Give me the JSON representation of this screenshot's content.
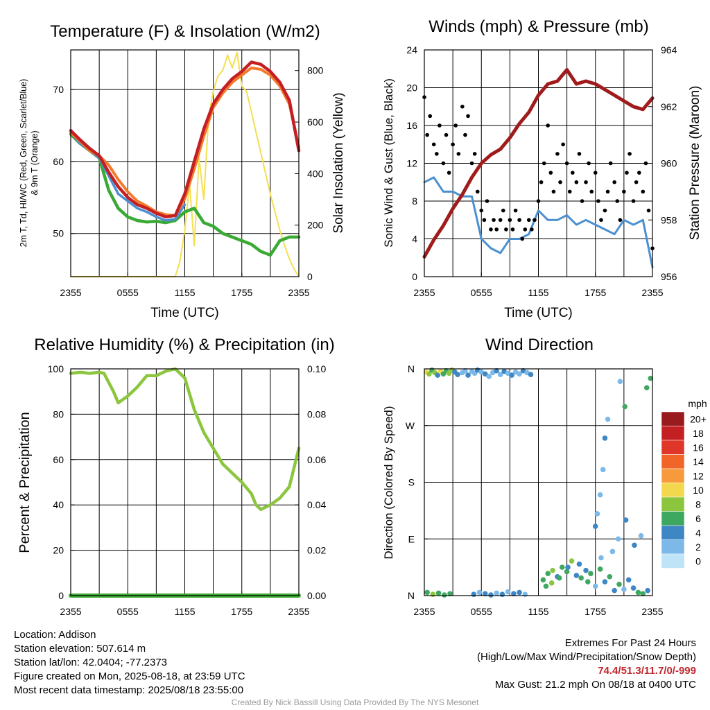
{
  "chart_data": [
    {
      "type": "line",
      "title": "Temperature (F) & Insolation (W/m2)",
      "xlabel": "Time (UTC)",
      "ylabel": "2m T, Td, HI/WC (Red, Green, Scarlet/Blue) & 9m T (Orange)",
      "y2label": "Solar Insolation (Yellow)",
      "x_ticks": [
        "2355",
        "0555",
        "1155",
        "1755",
        "2355"
      ],
      "ylim": [
        44,
        75.5
      ],
      "y_ticks": [
        50,
        60,
        70
      ],
      "y2lim": [
        0,
        880
      ],
      "y2_ticks": [
        0,
        200,
        400,
        600,
        800
      ],
      "x_hours": [
        0,
        24
      ],
      "grid": true,
      "series": [
        {
          "name": "2m T",
          "color": "#c42024",
          "axis": "left",
          "width": 4.5,
          "x": [
            0,
            1,
            2,
            3,
            4,
            5,
            6,
            7,
            8,
            9,
            10,
            11,
            12,
            13,
            14,
            15,
            16,
            17,
            18,
            19,
            20,
            21,
            22,
            23,
            24
          ],
          "y": [
            64.3,
            63,
            61.8,
            60.8,
            58.5,
            56.5,
            55,
            54,
            53.5,
            52.8,
            52.3,
            52.5,
            55.5,
            60,
            64.5,
            68,
            70,
            71.5,
            72.5,
            73.8,
            73.5,
            72.5,
            71,
            68.5,
            61.5
          ]
        },
        {
          "name": "Td",
          "color": "#3aaa35",
          "axis": "left",
          "width": 4.5,
          "x": [
            0,
            1,
            2,
            3,
            4,
            5,
            6,
            7,
            8,
            9,
            10,
            11,
            12,
            13,
            14,
            15,
            16,
            17,
            18,
            19,
            20,
            21,
            22,
            23,
            24
          ],
          "y": [
            63.8,
            62.5,
            61.5,
            60.5,
            56,
            53.5,
            52.3,
            51.8,
            51.6,
            51.7,
            51.5,
            51.8,
            53,
            53.5,
            51.5,
            51,
            50,
            49.5,
            49,
            48.5,
            47.5,
            47,
            49,
            49.5,
            49.5
          ]
        },
        {
          "name": "HI/WC",
          "color": "#4c8fd2",
          "axis": "left",
          "width": 3.5,
          "x": [
            0,
            1,
            2,
            3,
            4,
            5,
            6,
            7,
            8,
            9,
            10,
            11,
            12
          ],
          "y": [
            64,
            62.5,
            61.5,
            60.5,
            58,
            55.5,
            54.5,
            53.5,
            53,
            52.3,
            51.8,
            52,
            54
          ]
        },
        {
          "name": "9m T",
          "color": "#f47a2a",
          "axis": "left",
          "width": 4,
          "x": [
            0,
            1,
            2,
            3,
            4,
            5,
            6,
            7,
            8,
            9,
            10,
            11,
            12,
            13,
            14,
            15,
            16,
            17,
            18,
            19,
            20,
            21,
            22,
            23,
            24
          ],
          "y": [
            64,
            62.8,
            61.5,
            60.8,
            59.5,
            57.5,
            55.8,
            54.5,
            53.8,
            53,
            52.6,
            52.5,
            54.8,
            59,
            63.5,
            67.5,
            69.5,
            71,
            72,
            73,
            72.8,
            72,
            70.5,
            68,
            62
          ]
        },
        {
          "name": "Solar Insolation",
          "color": "#f4df4f",
          "axis": "right",
          "width": 2,
          "x": [
            0,
            2,
            4,
            6,
            8,
            10,
            11,
            11.5,
            12,
            12.5,
            13,
            13.5,
            14,
            14.5,
            15,
            15.5,
            16,
            16.5,
            17,
            17.5,
            18,
            18.5,
            19,
            19.5,
            20,
            20.5,
            21,
            21.5,
            22,
            22.5,
            23,
            23.5,
            24
          ],
          "y": [
            0,
            0,
            0,
            0,
            0,
            0,
            0,
            60,
            180,
            360,
            120,
            460,
            300,
            620,
            720,
            780,
            800,
            860,
            810,
            870,
            740,
            720,
            640,
            560,
            480,
            400,
            320,
            250,
            180,
            120,
            70,
            30,
            0
          ]
        }
      ]
    },
    {
      "type": "line",
      "title": "Winds (mph) & Pressure (mb)",
      "xlabel": "Time (UTC)",
      "ylabel": "Sonic Wind & Gust (Blue, Black)",
      "y2label": "Station Pressure (Maroon)",
      "x_ticks": [
        "2355",
        "0555",
        "1155",
        "1755",
        "2355"
      ],
      "ylim": [
        0,
        24
      ],
      "y_ticks": [
        0,
        4,
        8,
        12,
        16,
        20,
        24
      ],
      "y2lim": [
        956,
        964
      ],
      "y2_ticks": [
        956,
        958,
        960,
        962,
        964
      ],
      "x_hours": [
        0,
        24
      ],
      "grid": true,
      "series": [
        {
          "name": "Sonic Wind",
          "color": "#4a90d0",
          "axis": "left",
          "type": "line",
          "width": 3,
          "x": [
            0,
            1,
            2,
            3,
            4,
            5,
            6,
            7,
            8,
            9,
            10,
            11,
            12,
            13,
            14,
            15,
            16,
            17,
            18,
            19,
            20,
            21,
            22,
            23,
            24
          ],
          "y": [
            10,
            10.5,
            9,
            9,
            8.5,
            8.5,
            4,
            3,
            2.5,
            4,
            4,
            4.5,
            7,
            6,
            6,
            6.5,
            5.5,
            6,
            5.5,
            5,
            4.5,
            6,
            5.5,
            6,
            1
          ]
        },
        {
          "name": "Gust",
          "color": "#000000",
          "axis": "left",
          "type": "scatter",
          "x": [
            0,
            0.3,
            0.6,
            1,
            1.3,
            1.6,
            2,
            2.3,
            2.6,
            3,
            3.3,
            3.6,
            4,
            4.3,
            4.6,
            5,
            5.3,
            5.6,
            6,
            6.3,
            6.6,
            7,
            7.3,
            7.6,
            8,
            8.3,
            8.6,
            9,
            9.3,
            9.6,
            10,
            10.3,
            10.6,
            11,
            11.3,
            11.6,
            12,
            12.3,
            12.6,
            13,
            13.3,
            13.6,
            14,
            14.3,
            14.6,
            15,
            15.3,
            15.6,
            16,
            16.3,
            16.6,
            17,
            17.3,
            17.6,
            18,
            18.3,
            18.6,
            19,
            19.3,
            19.6,
            20,
            20.3,
            20.6,
            21,
            21.3,
            21.6,
            22,
            22.3,
            22.6,
            23,
            23.3,
            23.6,
            24
          ],
          "y": [
            19,
            15,
            17,
            14,
            13,
            16,
            12,
            15,
            11,
            14,
            16,
            13,
            18,
            15,
            17,
            12,
            13,
            9,
            7,
            6,
            8,
            5,
            6,
            5,
            6,
            7,
            5,
            6,
            5,
            7,
            6,
            4,
            5,
            6,
            5,
            6,
            8,
            10,
            12,
            16,
            11,
            9,
            13,
            10,
            14,
            12,
            9,
            11,
            10,
            13,
            8,
            10,
            12,
            9,
            11,
            8,
            6,
            7,
            9,
            12,
            10,
            8,
            6,
            9,
            11,
            13,
            8,
            10,
            11,
            9,
            12,
            7,
            3
          ]
        },
        {
          "name": "Station Pressure",
          "color": "#a01c1c",
          "axis": "right",
          "type": "line",
          "width": 5,
          "x": [
            0,
            1,
            2,
            3,
            4,
            5,
            6,
            7,
            8,
            9,
            10,
            11,
            12,
            13,
            14,
            15,
            16,
            17,
            18,
            19,
            20,
            21,
            22,
            23,
            24
          ],
          "y": [
            956.7,
            957.3,
            957.8,
            958.4,
            958.9,
            959.5,
            960,
            960.3,
            960.5,
            960.9,
            961.4,
            961.8,
            962.4,
            962.8,
            962.9,
            963.3,
            962.8,
            962.9,
            962.8,
            962.6,
            962.4,
            962.2,
            962.0,
            961.9,
            962.3
          ]
        }
      ]
    },
    {
      "type": "line",
      "title": "Relative Humidity (%) & Precipitation (in)",
      "xlabel": "",
      "ylabel": "Percent & Precipitation",
      "x_ticks": [
        "2355",
        "0555",
        "1155",
        "1755",
        "2355"
      ],
      "ylim": [
        0,
        100
      ],
      "y_ticks": [
        0,
        20,
        40,
        60,
        80,
        100
      ],
      "y2lim": [
        0,
        0.1
      ],
      "y2_ticks": [
        "0.00",
        "0.02",
        "0.04",
        "0.06",
        "0.08",
        "0.10"
      ],
      "x_hours": [
        0,
        24
      ],
      "grid": true,
      "series": [
        {
          "name": "Relative Humidity",
          "color": "#8cc63f",
          "axis": "left",
          "width": 4.5,
          "x": [
            0,
            1,
            2,
            3,
            3.5,
            4,
            4.5,
            5,
            6,
            7,
            8,
            9,
            10,
            11,
            12,
            13,
            14,
            15,
            16,
            17,
            18,
            19,
            19.5,
            20,
            21,
            22,
            23,
            24
          ],
          "y": [
            98,
            98.5,
            98,
            98.5,
            98,
            94,
            90,
            85,
            88,
            92,
            97,
            97,
            99,
            100,
            96,
            82,
            72,
            65,
            58,
            54,
            50,
            45,
            40,
            38,
            40,
            43,
            48,
            65
          ]
        },
        {
          "name": "Precipitation",
          "color": "#3aaa35",
          "axis": "right",
          "width": 6,
          "x": [
            0,
            24
          ],
          "y": [
            0,
            0
          ]
        }
      ]
    },
    {
      "type": "scatter",
      "title": "Wind Direction",
      "ylabel": "Direction (Colored By Speed)",
      "x_ticks": [
        "2355",
        "0555",
        "1155",
        "1755",
        "2355"
      ],
      "y_tick_labels": [
        "N",
        "E",
        "S",
        "W",
        "N"
      ],
      "ylim": [
        0,
        360
      ],
      "x_hours": [
        0,
        24
      ],
      "grid": true,
      "legend": {
        "title": "mph",
        "labels": [
          "20+",
          "18",
          "16",
          "14",
          "12",
          "10",
          "8",
          "6",
          "4",
          "2",
          "0"
        ],
        "colors": [
          "#9a1b1e",
          "#c42024",
          "#e0362a",
          "#f16529",
          "#f79a3c",
          "#f3d84f",
          "#8cc63f",
          "#3fa860",
          "#3f86c4",
          "#7db9e8",
          "#bfe3f7"
        ]
      },
      "points_x": [
        0.2,
        0.5,
        0.8,
        1.1,
        1.4,
        1.7,
        2,
        2.3,
        2.6,
        2.9,
        3.2,
        3.5,
        4,
        4.3,
        4.6,
        5,
        5.3,
        5.6,
        6,
        6.4,
        6.8,
        7.2,
        7.6,
        8,
        8.4,
        8.8,
        9.2,
        9.6,
        10,
        10.4,
        10.8,
        11.2,
        0.3,
        0.9,
        1.5,
        2.1,
        2.7,
        5.2,
        5.8,
        6.4,
        7,
        7.6,
        8.2,
        8.8,
        9.4,
        10,
        10.6,
        12.5,
        13,
        13.5,
        14,
        14.5,
        15,
        15.5,
        16,
        16.5,
        17,
        17.5,
        18,
        18.5,
        19,
        19.5,
        20,
        20.5,
        21,
        21.5,
        22,
        22.5,
        23,
        23.5,
        18,
        18.2,
        18.5,
        18.8,
        19,
        19.3,
        12.8,
        13.4,
        14.2,
        15.1,
        16.3,
        17.2,
        18.6,
        19.8,
        20.4,
        21.2,
        22.1,
        22.8,
        23.4,
        23.8,
        20.6,
        21.1
      ],
      "points_y": [
        355,
        352,
        358,
        354,
        350,
        356,
        352,
        357,
        353,
        358,
        355,
        351,
        354,
        357,
        350,
        356,
        353,
        358,
        355,
        352,
        348,
        354,
        357,
        351,
        356,
        353,
        350,
        355,
        352,
        357,
        354,
        351,
        5,
        2,
        4,
        1,
        3,
        2,
        5,
        3,
        1,
        4,
        2,
        6,
        3,
        5,
        2,
        25,
        35,
        40,
        30,
        45,
        38,
        55,
        32,
        28,
        40,
        35,
        15,
        42,
        22,
        30,
        8,
        18,
        10,
        25,
        12,
        5,
        3,
        8,
        110,
        130,
        160,
        200,
        250,
        280,
        15,
        20,
        28,
        45,
        50,
        22,
        60,
        70,
        90,
        120,
        80,
        95,
        330,
        345,
        340,
        300
      ],
      "points_speed": [
        10,
        9,
        6,
        8,
        5,
        10,
        7,
        6,
        8,
        9,
        4,
        5,
        3,
        2,
        4,
        3,
        2,
        5,
        3,
        4,
        2,
        3,
        4,
        3,
        5,
        2,
        4,
        3,
        2,
        4,
        3,
        4,
        6,
        8,
        7,
        6,
        7,
        4,
        3,
        4,
        5,
        3,
        4,
        3,
        4,
        5,
        3,
        7,
        6,
        8,
        5,
        7,
        6,
        8,
        5,
        6,
        4,
        7,
        3,
        6,
        5,
        7,
        4,
        6,
        3,
        5,
        4,
        6,
        7,
        5,
        4,
        3,
        2,
        3,
        4,
        2,
        7,
        8,
        6,
        5,
        4,
        6,
        3,
        2,
        3,
        4,
        5,
        3,
        6,
        7,
        3,
        6
      ]
    }
  ],
  "info": {
    "location": "Location: Addison",
    "elevation": "Station elevation: 507.614 m",
    "latlon": "Station lat/lon: 42.0404; -77.2373",
    "created": "Figure created on Mon, 2025-08-18, at 23:59 UTC",
    "recent": "Most recent data timestamp: 2025/08/18 23:55:00"
  },
  "extremes": {
    "title": "Extremes For Past 24 Hours",
    "subtitle": "(High/Low/Max Wind/Precipitation/Snow Depth)",
    "values": "74.4/51.3/11.7/0/-999",
    "max_gust": "Max Gust: 21.2 mph On 08/18 at 0400 UTC"
  },
  "credit": "Created By Nick Bassill Using Data Provided By The NYS Mesonet"
}
